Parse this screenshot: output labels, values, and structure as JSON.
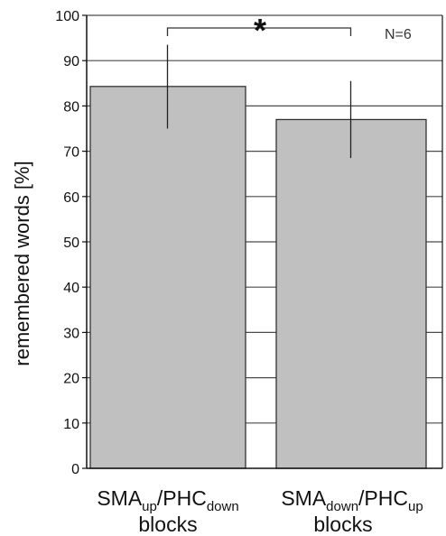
{
  "chart_data": {
    "type": "bar",
    "categories": [
      {
        "main": "SMA",
        "sub": "up",
        "slash": "/",
        "main2": "PHC",
        "sub2": "down",
        "line2": "blocks"
      },
      {
        "main": "SMA",
        "sub": "down",
        "slash": "/",
        "main2": "PHC",
        "sub2": "up",
        "line2": "blocks"
      }
    ],
    "values": [
      84.3,
      77.0
    ],
    "errors": [
      {
        "low": 75.0,
        "high": 93.5
      },
      {
        "low": 68.5,
        "high": 85.5
      }
    ],
    "ylabel": "remembered words [%]",
    "ylim": [
      0,
      100
    ],
    "yticks": [
      0,
      10,
      20,
      30,
      40,
      50,
      60,
      70,
      80,
      90,
      100
    ],
    "annotation": "N=6",
    "significance": "*",
    "grid": true,
    "colors": {
      "bar": "#c0c0c0",
      "edge": "#333333"
    }
  }
}
